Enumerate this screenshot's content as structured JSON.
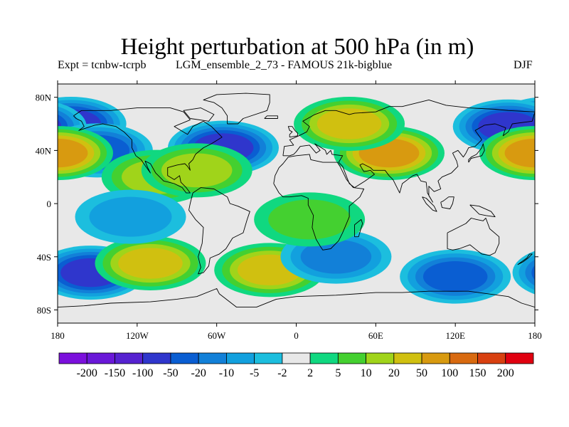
{
  "title": "Height perturbation at 500 hPa (in m)",
  "experiment": "Expt = tcnbw-tcrpb",
  "run": "LGM_ensemble_2_73 - FAMOUS 21k-bigblue",
  "season": "DJF",
  "axes": {
    "x_ticks": [
      "180",
      "120W",
      "60W",
      "0",
      "60E",
      "120E",
      "180"
    ],
    "y_ticks": [
      "80N",
      "40N",
      "0",
      "40S",
      "80S"
    ]
  },
  "colorbar": {
    "labels": [
      "-200",
      "-150",
      "-100",
      "-50",
      "-20",
      "-10",
      "-5",
      "-2",
      "2",
      "5",
      "10",
      "20",
      "50",
      "100",
      "150",
      "200"
    ],
    "colors": [
      "#7b10dc",
      "#6a18d8",
      "#5622d0",
      "#2f36cc",
      "#0a5ed2",
      "#1280d8",
      "#12a0de",
      "#1cbede",
      "#e8e8e8",
      "#10d880",
      "#44d030",
      "#a0d41a",
      "#d0c010",
      "#d89a10",
      "#d86a10",
      "#d84010",
      "#e00010"
    ]
  },
  "map_features": {
    "coastlines": "black outlines",
    "background_color": "#e8e8e8",
    "anomaly_centers": [
      {
        "lon": -170,
        "lat": 60,
        "level": "-50"
      },
      {
        "lon": -155,
        "lat": -52,
        "level": "-50"
      },
      {
        "lon": -55,
        "lat": 42,
        "level": "-50"
      },
      {
        "lon": 160,
        "lat": 58,
        "level": "-50"
      },
      {
        "lon": -150,
        "lat": 40,
        "level": "-20"
      },
      {
        "lon": 70,
        "lat": 38,
        "level": "50"
      },
      {
        "lon": -180,
        "lat": 38,
        "level": "50"
      },
      {
        "lon": -110,
        "lat": -45,
        "level": "20"
      },
      {
        "lon": -20,
        "lat": -50,
        "level": "20"
      },
      {
        "lon": 40,
        "lat": 60,
        "level": "20"
      },
      {
        "lon": -105,
        "lat": 20,
        "level": "10"
      },
      {
        "lon": 120,
        "lat": -55,
        "level": "-20"
      },
      {
        "lon": 30,
        "lat": -40,
        "level": "-10"
      },
      {
        "lon": -125,
        "lat": -10,
        "level": "-5"
      },
      {
        "lon": -75,
        "lat": 25,
        "level": "10"
      },
      {
        "lon": 10,
        "lat": -12,
        "level": "5"
      }
    ]
  }
}
